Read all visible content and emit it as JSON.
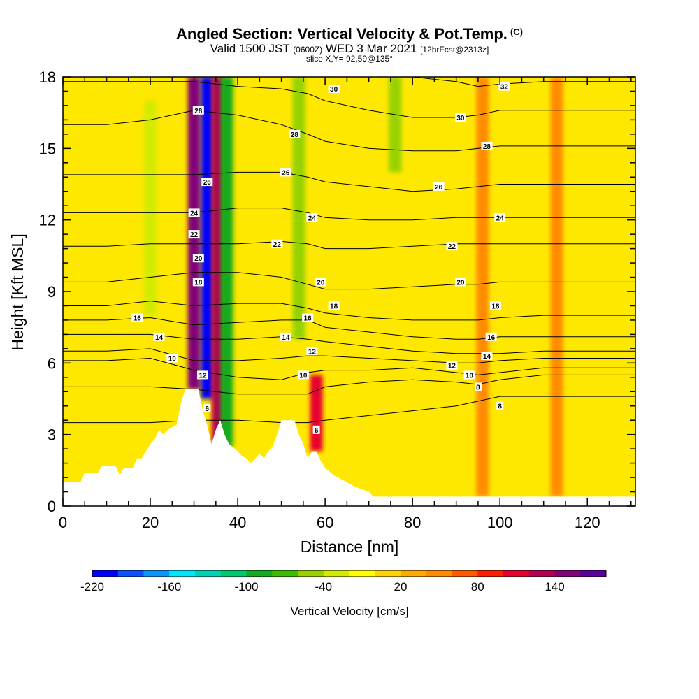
{
  "header": {
    "title": "Angled Section: Vertical Velocity & Pot.Temp.",
    "title_flag": "(C)",
    "valid_prefix": "Valid 1500 JST",
    "valid_utc": "(0600Z)",
    "valid_date": "WED 3 Mar 2021",
    "forecast": "[12hrFcst@2313z]",
    "slice": "slice X,Y= 92,59@135°"
  },
  "chart_data": {
    "type": "heatmap",
    "xlabel": "Distance [nm]",
    "ylabel": "Height [Kft MSL]",
    "xlim": [
      0,
      131
    ],
    "ylim": [
      0,
      18
    ],
    "x_ticks": [
      0,
      20,
      40,
      60,
      80,
      100,
      120
    ],
    "y_ticks": [
      0,
      3,
      6,
      9,
      12,
      15,
      18
    ],
    "colorbar": {
      "label": "Vertical Velocity [cm/s]",
      "min": -220,
      "max": 180,
      "step": 20,
      "tick_values": [
        -220,
        -160,
        -100,
        -40,
        20,
        80,
        140
      ],
      "colors": [
        "#0000ff",
        "#0a50ff",
        "#0a96ff",
        "#00e6ff",
        "#00d2b4",
        "#00c86e",
        "#14aa1e",
        "#3cbe00",
        "#96d200",
        "#d2eb00",
        "#ffff00",
        "#ffd200",
        "#ffaa00",
        "#ff8c00",
        "#ff5a00",
        "#ff1e00",
        "#e6002d",
        "#b40050",
        "#820078",
        "#5a00a0"
      ]
    },
    "terrain_kft": [
      [
        0,
        1.0
      ],
      [
        4,
        1.0
      ],
      [
        5,
        1.4
      ],
      [
        8,
        1.4
      ],
      [
        9,
        1.7
      ],
      [
        12,
        1.7
      ],
      [
        13,
        1.3
      ],
      [
        14,
        1.6
      ],
      [
        16,
        1.6
      ],
      [
        17,
        2.0
      ],
      [
        18,
        2.0
      ],
      [
        19,
        2.3
      ],
      [
        20,
        2.6
      ],
      [
        21,
        2.8
      ],
      [
        22,
        3.2
      ],
      [
        23,
        3.0
      ],
      [
        24,
        3.2
      ],
      [
        26,
        3.4
      ],
      [
        27,
        4.3
      ],
      [
        28,
        4.9
      ],
      [
        31,
        4.9
      ],
      [
        32,
        4.0
      ],
      [
        33,
        3.4
      ],
      [
        34,
        2.6
      ],
      [
        35,
        3.2
      ],
      [
        36,
        3.6
      ],
      [
        37,
        3.0
      ],
      [
        38,
        2.6
      ],
      [
        40,
        2.3
      ],
      [
        41,
        2.1
      ],
      [
        42,
        2.0
      ],
      [
        43,
        1.8
      ],
      [
        44,
        2.0
      ],
      [
        45,
        2.2
      ],
      [
        46,
        2.0
      ],
      [
        47,
        2.3
      ],
      [
        48,
        2.5
      ],
      [
        49,
        3.0
      ],
      [
        50,
        3.6
      ],
      [
        53,
        3.6
      ],
      [
        54,
        3.0
      ],
      [
        55,
        2.6
      ],
      [
        56,
        2.0
      ],
      [
        57,
        2.3
      ],
      [
        58,
        2.3
      ],
      [
        59,
        1.9
      ],
      [
        60,
        1.6
      ],
      [
        62,
        1.3
      ],
      [
        65,
        1.0
      ],
      [
        67,
        0.8
      ],
      [
        70,
        0.6
      ],
      [
        71,
        0.4
      ],
      [
        131,
        0.4
      ]
    ],
    "vertical_velocity_features": [
      {
        "x": 30.0,
        "z_range": [
          4.9,
          18
        ],
        "w": 140
      },
      {
        "x": 33.0,
        "z_range": [
          4.5,
          18
        ],
        "w": -220
      },
      {
        "x": 35.5,
        "z_range": [
          2.6,
          18
        ],
        "w": 120
      },
      {
        "x": 37.5,
        "z_range": [
          2.5,
          18
        ],
        "w": -100
      },
      {
        "x": 58.0,
        "z_range": [
          2.3,
          5.5
        ],
        "w": 110
      },
      {
        "x": 54.0,
        "z_range": [
          7,
          18
        ],
        "w": -60
      },
      {
        "x": 76.0,
        "z_range": [
          14,
          18
        ],
        "w": -60
      },
      {
        "x": 20.0,
        "z_range": [
          8,
          17
        ],
        "w": -40
      },
      {
        "x": 96.0,
        "z_range": [
          0.4,
          18
        ],
        "w": 50
      },
      {
        "x": 113.0,
        "z_range": [
          0.4,
          18
        ],
        "w": 45
      }
    ],
    "potential_temperature_contours": [
      {
        "value": 6,
        "x": [
          0,
          10,
          20,
          30,
          40,
          50,
          56,
          60,
          70,
          80,
          90,
          95,
          100,
          110,
          120,
          131
        ],
        "z": [
          3.5,
          3.5,
          3.5,
          3.6,
          3.6,
          3.5,
          3.5,
          3.6,
          3.8,
          4.0,
          4.2,
          4.4,
          4.6,
          4.6,
          4.6,
          4.6
        ]
      },
      {
        "value": 8,
        "x": [
          0,
          10,
          20,
          30,
          40,
          50,
          56,
          60,
          70,
          80,
          90,
          95,
          100,
          110,
          120,
          131
        ],
        "z": [
          5.0,
          5.0,
          5.0,
          4.9,
          4.7,
          4.7,
          4.7,
          5.0,
          5.2,
          5.3,
          5.2,
          5.1,
          5.3,
          5.5,
          5.5,
          5.5
        ]
      },
      {
        "value": 10,
        "x": [
          0,
          10,
          20,
          30,
          40,
          50,
          56,
          60,
          70,
          80,
          90,
          95,
          100,
          110,
          120,
          131
        ],
        "z": [
          6.1,
          6.1,
          6.2,
          5.7,
          5.4,
          5.3,
          5.6,
          5.7,
          5.7,
          5.8,
          5.6,
          5.5,
          5.6,
          5.8,
          5.8,
          5.8
        ]
      },
      {
        "value": 12,
        "x": [
          0,
          10,
          20,
          30,
          40,
          50,
          56,
          60,
          70,
          80,
          90,
          95,
          100,
          110,
          120,
          131
        ],
        "z": [
          6.5,
          6.5,
          6.6,
          6.1,
          6.1,
          6.2,
          6.3,
          6.3,
          6.2,
          6.1,
          6.0,
          6.0,
          6.1,
          6.2,
          6.2,
          6.2
        ]
      },
      {
        "value": 14,
        "x": [
          0,
          10,
          20,
          30,
          40,
          50,
          56,
          60,
          70,
          80,
          90,
          95,
          100,
          110,
          120,
          131
        ],
        "z": [
          7.2,
          7.2,
          7.2,
          7.0,
          7.0,
          7.1,
          7.0,
          6.9,
          6.7,
          6.5,
          6.4,
          6.4,
          6.4,
          6.5,
          6.5,
          6.5
        ]
      },
      {
        "value": 16,
        "x": [
          0,
          10,
          20,
          30,
          40,
          50,
          56,
          60,
          70,
          80,
          90,
          95,
          100,
          110,
          120,
          131
        ],
        "z": [
          7.8,
          7.8,
          7.9,
          7.6,
          7.7,
          7.8,
          7.8,
          7.5,
          7.3,
          7.1,
          7.0,
          7.0,
          7.1,
          7.1,
          7.1,
          7.1
        ]
      },
      {
        "value": 18,
        "x": [
          0,
          10,
          20,
          30,
          40,
          50,
          56,
          60,
          70,
          80,
          90,
          95,
          100,
          110,
          120,
          131
        ],
        "z": [
          8.4,
          8.4,
          8.6,
          8.4,
          8.5,
          8.5,
          8.3,
          8.1,
          7.9,
          7.8,
          7.8,
          7.8,
          7.9,
          8.0,
          8.0,
          8.0
        ]
      },
      {
        "value": 20,
        "x": [
          0,
          10,
          20,
          30,
          40,
          50,
          56,
          60,
          70,
          80,
          90,
          95,
          100,
          110,
          120,
          131
        ],
        "z": [
          9.4,
          9.4,
          9.6,
          9.8,
          9.8,
          9.6,
          9.3,
          9.1,
          9.1,
          9.2,
          9.3,
          9.3,
          9.4,
          9.4,
          9.4,
          9.4
        ]
      },
      {
        "value": 22,
        "x": [
          0,
          10,
          20,
          30,
          40,
          50,
          56,
          60,
          70,
          80,
          90,
          95,
          100,
          110,
          120,
          131
        ],
        "z": [
          10.9,
          10.9,
          11.0,
          11.0,
          11.0,
          11.1,
          11.0,
          10.8,
          10.8,
          10.9,
          11.0,
          11.0,
          11.0,
          11.0,
          11.0,
          11.0
        ]
      },
      {
        "value": 24,
        "x": [
          0,
          10,
          20,
          30,
          40,
          50,
          56,
          60,
          70,
          80,
          90,
          95,
          100,
          110,
          120,
          131
        ],
        "z": [
          12.3,
          12.3,
          12.3,
          12.3,
          12.5,
          12.5,
          12.3,
          12.1,
          12.0,
          12.0,
          12.1,
          12.1,
          12.1,
          12.1,
          12.1,
          12.1
        ]
      },
      {
        "value": 26,
        "x": [
          0,
          10,
          20,
          30,
          40,
          50,
          56,
          60,
          70,
          80,
          90,
          95,
          100,
          110,
          120,
          131
        ],
        "z": [
          13.9,
          13.9,
          13.9,
          13.9,
          14.0,
          14.0,
          13.8,
          13.6,
          13.4,
          13.2,
          13.3,
          13.4,
          13.5,
          13.5,
          13.5,
          13.5
        ]
      },
      {
        "value": 28,
        "x": [
          0,
          10,
          20,
          30,
          40,
          50,
          56,
          60,
          70,
          80,
          90,
          95,
          100,
          110,
          120,
          131
        ],
        "z": [
          16.0,
          16.0,
          16.2,
          16.6,
          16.4,
          16.0,
          15.6,
          15.3,
          15.0,
          14.9,
          14.9,
          15.0,
          15.1,
          15.1,
          15.1,
          15.1
        ]
      },
      {
        "value": 30,
        "x": [
          0,
          10,
          20,
          30,
          40,
          50,
          56,
          60,
          70,
          80,
          90,
          95,
          100,
          110,
          120,
          131
        ],
        "z": [
          17.8,
          17.8,
          17.8,
          17.8,
          17.6,
          17.5,
          17.3,
          17.0,
          16.6,
          16.3,
          16.3,
          16.4,
          16.6,
          16.6,
          16.6,
          16.6
        ]
      },
      {
        "value": 32,
        "x": [
          80,
          90,
          95,
          100,
          110,
          120,
          131
        ],
        "z": [
          18.0,
          17.8,
          17.6,
          17.7,
          17.8,
          17.8,
          17.8
        ]
      }
    ],
    "contour_labels": [
      {
        "text": "6",
        "x": 33,
        "z": 4.1
      },
      {
        "text": "6",
        "x": 58,
        "z": 3.2
      },
      {
        "text": "8",
        "x": 95,
        "z": 5.0
      },
      {
        "text": "8",
        "x": 100,
        "z": 4.2
      },
      {
        "text": "10",
        "x": 25,
        "z": 6.2
      },
      {
        "text": "10",
        "x": 55,
        "z": 5.5
      },
      {
        "text": "10",
        "x": 93,
        "z": 5.5
      },
      {
        "text": "12",
        "x": 32,
        "z": 5.5
      },
      {
        "text": "12",
        "x": 57,
        "z": 6.5
      },
      {
        "text": "12",
        "x": 89,
        "z": 5.9
      },
      {
        "text": "14",
        "x": 22,
        "z": 7.1
      },
      {
        "text": "14",
        "x": 51,
        "z": 7.1
      },
      {
        "text": "14",
        "x": 97,
        "z": 6.3
      },
      {
        "text": "16",
        "x": 17,
        "z": 7.9
      },
      {
        "text": "16",
        "x": 56,
        "z": 7.9
      },
      {
        "text": "16",
        "x": 98,
        "z": 7.1
      },
      {
        "text": "18",
        "x": 31,
        "z": 9.4
      },
      {
        "text": "18",
        "x": 62,
        "z": 8.4
      },
      {
        "text": "18",
        "x": 99,
        "z": 8.4
      },
      {
        "text": "20",
        "x": 31,
        "z": 10.4
      },
      {
        "text": "20",
        "x": 59,
        "z": 9.4
      },
      {
        "text": "20",
        "x": 91,
        "z": 9.4
      },
      {
        "text": "22",
        "x": 30,
        "z": 11.4
      },
      {
        "text": "22",
        "x": 49,
        "z": 11.0
      },
      {
        "text": "22",
        "x": 89,
        "z": 10.9
      },
      {
        "text": "24",
        "x": 30,
        "z": 12.3
      },
      {
        "text": "24",
        "x": 57,
        "z": 12.1
      },
      {
        "text": "24",
        "x": 100,
        "z": 12.1
      },
      {
        "text": "26",
        "x": 33,
        "z": 13.6
      },
      {
        "text": "26",
        "x": 51,
        "z": 14.0
      },
      {
        "text": "26",
        "x": 86,
        "z": 13.4
      },
      {
        "text": "28",
        "x": 31,
        "z": 16.6
      },
      {
        "text": "28",
        "x": 53,
        "z": 15.6
      },
      {
        "text": "28",
        "x": 97,
        "z": 15.1
      },
      {
        "text": "30",
        "x": 62,
        "z": 17.5
      },
      {
        "text": "30",
        "x": 91,
        "z": 16.3
      },
      {
        "text": "32",
        "x": 101,
        "z": 17.6
      }
    ]
  }
}
